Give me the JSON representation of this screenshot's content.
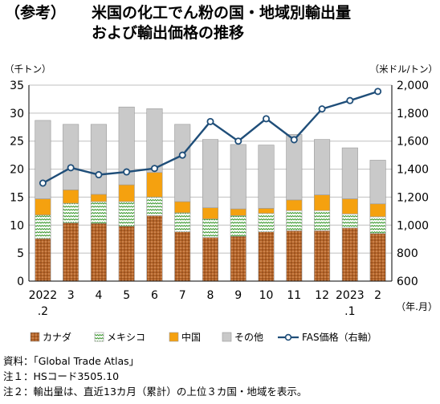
{
  "title": {
    "prefix": "（参考）",
    "line1": "米国の化工でん粉の国・地域別輸出量",
    "line2": "および輸出価格の推移"
  },
  "chart_data": {
    "type": "bar",
    "stacked": true,
    "categories": [
      "2022\n.2",
      "3",
      "4",
      "5",
      "6",
      "7",
      "8",
      "9",
      "10",
      "11",
      "12",
      "2023\n.1",
      "2"
    ],
    "x_unit": "（年.月）",
    "left_axis": {
      "unit": "（千トン）",
      "ylim": [
        0,
        35
      ],
      "ticks": [
        0,
        5,
        10,
        15,
        20,
        25,
        30,
        35
      ]
    },
    "right_axis": {
      "unit": "（米ドル/トン）",
      "ylim": [
        600,
        2000
      ],
      "ticks": [
        600,
        800,
        1000,
        1200,
        1400,
        1600,
        1800,
        2000
      ]
    },
    "grid": true,
    "legend_position": "bottom",
    "series": [
      {
        "name": "カナダ",
        "type": "bar",
        "axis": "left",
        "color": "#b5652a",
        "values": [
          7.6,
          10.4,
          10.3,
          9.8,
          11.7,
          8.8,
          7.8,
          8.0,
          8.8,
          9.0,
          9.0,
          9.5,
          8.5
        ]
      },
      {
        "name": "メキシコ",
        "type": "bar",
        "axis": "left",
        "color": "#7fbf60",
        "values": [
          4.2,
          3.5,
          3.9,
          4.4,
          3.3,
          3.4,
          3.3,
          3.7,
          3.3,
          3.6,
          3.6,
          2.5,
          3.0
        ]
      },
      {
        "name": "中国",
        "type": "bar",
        "axis": "left",
        "color": "#f5a10f",
        "values": [
          2.9,
          2.4,
          1.3,
          3.0,
          4.4,
          2.0,
          2.0,
          1.2,
          0.9,
          1.9,
          2.8,
          2.7,
          2.3
        ]
      },
      {
        "name": "その他",
        "type": "bar",
        "axis": "left",
        "color": "#c9c9c9",
        "values": [
          14.0,
          11.7,
          12.5,
          13.9,
          11.4,
          13.8,
          12.2,
          11.5,
          11.3,
          11.7,
          9.9,
          9.1,
          7.8
        ]
      },
      {
        "name": "FAS価格（右軸）",
        "type": "line",
        "axis": "right",
        "color": "#1f4e79",
        "values": [
          1300,
          1410,
          1360,
          1380,
          1405,
          1500,
          1740,
          1600,
          1760,
          1610,
          1830,
          1890,
          1955
        ]
      }
    ]
  },
  "notes": [
    "資料：「Global Trade Atlas」",
    "注１：HSコード3505.10",
    "注２：輸出量は、直近13カ月（累計）の上位３カ国・地域を表示。"
  ]
}
